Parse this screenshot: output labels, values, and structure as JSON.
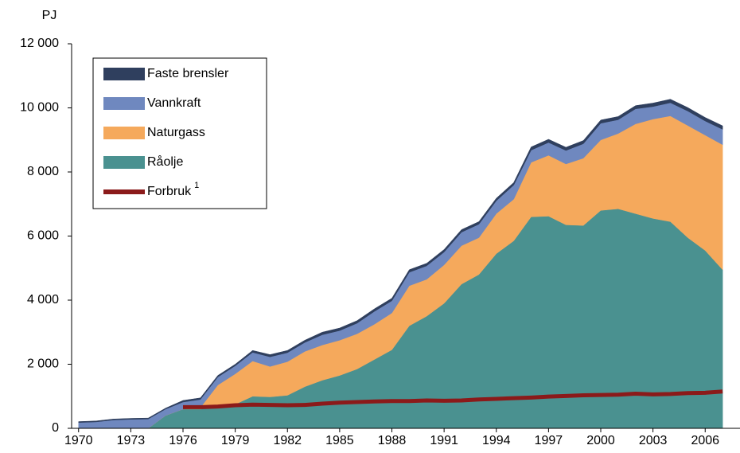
{
  "chart_data": {
    "type": "area",
    "y_label": "PJ",
    "x": [
      1970,
      1971,
      1972,
      1973,
      1974,
      1975,
      1976,
      1977,
      1978,
      1979,
      1980,
      1981,
      1982,
      1983,
      1984,
      1985,
      1986,
      1987,
      1988,
      1989,
      1990,
      1991,
      1992,
      1993,
      1994,
      1995,
      1996,
      1997,
      1998,
      1999,
      2000,
      2001,
      2002,
      2003,
      2004,
      2005,
      2006,
      2007
    ],
    "xlim": [
      1969.6,
      2008
    ],
    "xticks": [
      1970,
      1973,
      1976,
      1979,
      1982,
      1985,
      1988,
      1991,
      1994,
      1997,
      2000,
      2003,
      2006
    ],
    "ylim": [
      0,
      12000
    ],
    "yticks": [
      0,
      {
        "value": 2000,
        "label": "2 000"
      },
      {
        "value": 4000,
        "label": "4 000"
      },
      {
        "value": 6000,
        "label": "6 000"
      },
      {
        "value": 8000,
        "label": "8 000"
      },
      {
        "value": 10000,
        "label": "10 000"
      },
      {
        "value": 12000,
        "label": "12 000"
      }
    ],
    "series": [
      {
        "name": "Råolje",
        "color": "#4a9190",
        "values": [
          0,
          0,
          0,
          0,
          0,
          400,
          600,
          600,
          700,
          750,
          1000,
          980,
          1030,
          1300,
          1500,
          1650,
          1850,
          2150,
          2450,
          3200,
          3500,
          3900,
          4500,
          4800,
          5450,
          5850,
          6600,
          6620,
          6350,
          6330,
          6800,
          6850,
          6700,
          6550,
          6450,
          5950,
          5550,
          4950
        ]
      },
      {
        "name": "Naturgass",
        "color": "#f5a95c",
        "values": [
          0,
          0,
          0,
          0,
          0,
          0,
          0,
          50,
          650,
          950,
          1100,
          950,
          1050,
          1100,
          1100,
          1100,
          1100,
          1100,
          1150,
          1250,
          1150,
          1200,
          1200,
          1150,
          1250,
          1300,
          1700,
          1900,
          1900,
          2100,
          2200,
          2350,
          2800,
          3100,
          3300,
          3500,
          3600,
          3900
        ]
      },
      {
        "name": "Vannkraft",
        "color": "#6f88bf",
        "values": [
          180,
          200,
          260,
          280,
          290,
          200,
          220,
          250,
          250,
          250,
          270,
          300,
          280,
          280,
          320,
          300,
          330,
          400,
          380,
          420,
          420,
          400,
          420,
          420,
          400,
          440,
          380,
          400,
          420,
          450,
          520,
          430,
          470,
          390,
          410,
          450,
          440,
          480
        ]
      },
      {
        "name": "Faste brensler",
        "color": "#2f3f5e",
        "values": [
          30,
          30,
          30,
          30,
          30,
          30,
          50,
          50,
          50,
          50,
          60,
          70,
          70,
          70,
          80,
          80,
          80,
          80,
          80,
          80,
          80,
          80,
          80,
          80,
          80,
          80,
          100,
          100,
          100,
          100,
          100,
          100,
          100,
          110,
          110,
          110,
          110,
          110
        ]
      },
      {
        "name": "Forbruk",
        "note": "1",
        "type": "line",
        "color": "#8b1a1a",
        "values": [
          null,
          null,
          null,
          null,
          null,
          null,
          660,
          660,
          680,
          720,
          740,
          730,
          720,
          730,
          770,
          800,
          820,
          840,
          850,
          850,
          870,
          860,
          870,
          900,
          920,
          940,
          960,
          990,
          1010,
          1030,
          1040,
          1050,
          1080,
          1060,
          1070,
          1100,
          1110,
          1150
        ]
      }
    ]
  }
}
